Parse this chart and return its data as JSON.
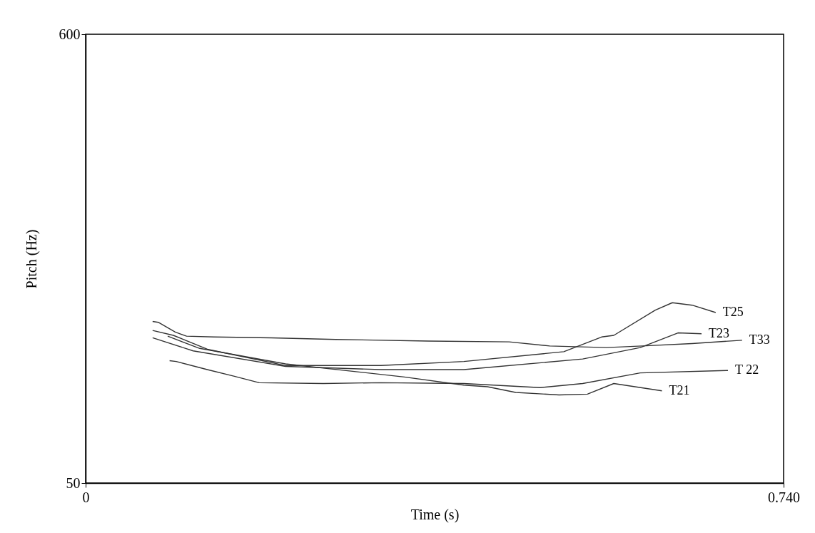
{
  "chart_data": {
    "type": "line",
    "xlabel": "Time (s)",
    "ylabel": "Pitch (Hz)",
    "xlim": [
      0,
      0.74
    ],
    "xticks": [
      0,
      {
        "value": 0.74,
        "label": "0.740"
      }
    ],
    "ylim": [
      50,
      600
    ],
    "yticks": [
      50,
      600
    ],
    "grid": false,
    "legend": false,
    "series": [
      {
        "name": "T25",
        "color": "#333333",
        "x": [
          0.071,
          0.093,
          0.129,
          0.212,
          0.313,
          0.401,
          0.507,
          0.547,
          0.56,
          0.604,
          0.622,
          0.643,
          0.668
        ],
        "values": [
          237,
          231,
          214,
          194,
          194,
          199,
          211,
          229,
          231,
          262,
          271,
          268,
          259
        ]
      },
      {
        "name": "T23",
        "color": "#333333",
        "x": [
          0.071,
          0.114,
          0.212,
          0.313,
          0.401,
          0.527,
          0.588,
          0.628,
          0.653
        ],
        "values": [
          228,
          212,
          193,
          189,
          189,
          202,
          216,
          234,
          233
        ]
      },
      {
        "name": "T33",
        "color": "#333333",
        "x": [
          0.071,
          0.077,
          0.095,
          0.107,
          0.136,
          0.197,
          0.265,
          0.363,
          0.449,
          0.492,
          0.552,
          0.59,
          0.643,
          0.696
        ],
        "values": [
          248,
          247,
          235,
          230,
          229,
          228,
          226,
          224,
          223,
          218,
          216,
          218,
          221,
          225
        ]
      },
      {
        "name": "T 22",
        "color": "#333333",
        "x": [
          0.089,
          0.096,
          0.129,
          0.157,
          0.184,
          0.252,
          0.313,
          0.401,
          0.482,
          0.527,
          0.588,
          0.681
        ],
        "values": [
          200,
          199,
          189,
          181,
          173,
          172,
          173,
          172,
          167,
          172,
          185,
          188
        ]
      },
      {
        "name": "T21",
        "color": "#333333",
        "x": [
          0.087,
          0.121,
          0.212,
          0.338,
          0.401,
          0.426,
          0.456,
          0.502,
          0.532,
          0.56,
          0.611
        ],
        "values": [
          230,
          215,
          196,
          180,
          170,
          168,
          161,
          158,
          159,
          172,
          163
        ]
      }
    ]
  }
}
